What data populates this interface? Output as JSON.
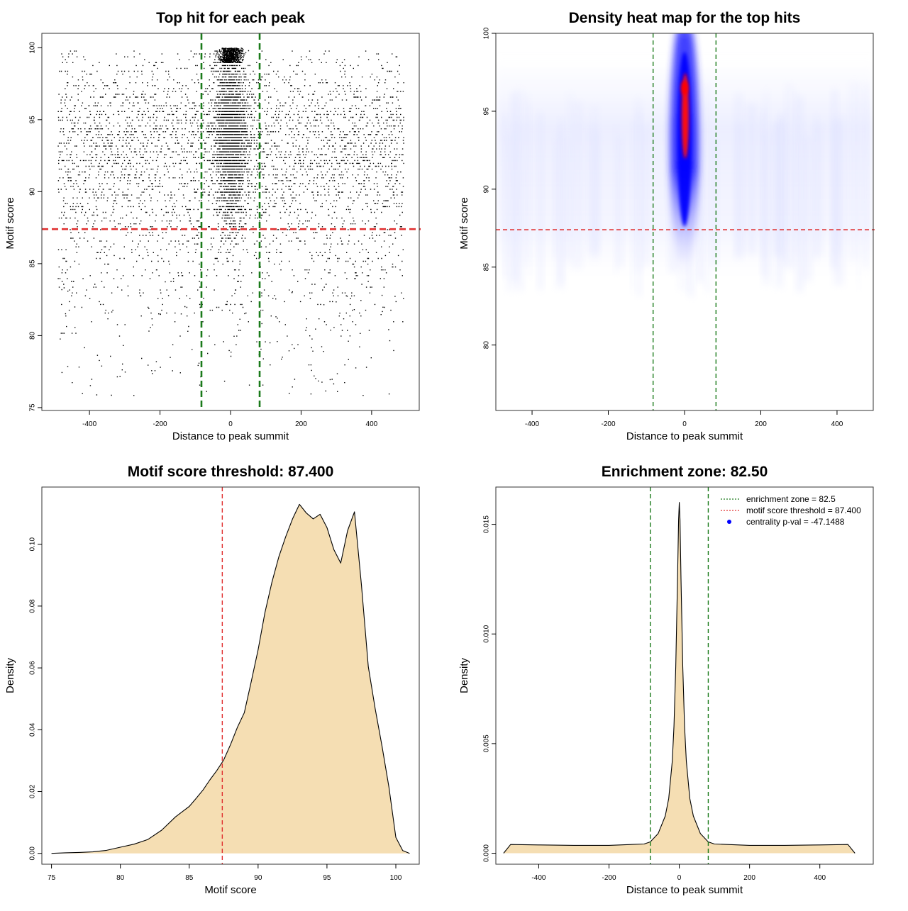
{
  "chart_data": [
    {
      "type": "scatter",
      "title": "Top hit for each peak",
      "xlabel": "Distance to peak summit",
      "ylabel": "Motif score",
      "xlim": [
        -500,
        500
      ],
      "ylim": [
        75,
        100
      ],
      "xticks": [
        -400,
        -200,
        0,
        200,
        400
      ],
      "yticks": [
        75,
        80,
        85,
        90,
        95,
        100
      ],
      "grid": false,
      "reference_lines": {
        "vertical": [
          -82.5,
          82.5
        ],
        "vertical_color": "#1a7a1a",
        "horizontal": [
          87.4
        ],
        "horizontal_color": "#e03030"
      },
      "point_color": "#000000",
      "point_distribution": {
        "x_range": [
          -490,
          490
        ],
        "y_range": [
          75.5,
          100
        ],
        "central_cluster_x_range": [
          -80,
          80
        ],
        "central_cluster_y_range": [
          84.5,
          100
        ]
      }
    },
    {
      "type": "heatmap",
      "title": "Density heat map for the top hits",
      "xlabel": "Distance to peak summit",
      "ylabel": "Motif score",
      "xlim": [
        -500,
        500
      ],
      "ylim": [
        75,
        100
      ],
      "xticks": [
        -400,
        -200,
        0,
        200,
        400
      ],
      "yticks": [
        80,
        85,
        90,
        95,
        100
      ],
      "grid": false,
      "reference_lines": {
        "vertical": [
          -82.5,
          82.5
        ],
        "vertical_color": "#1a7a1a",
        "horizontal": [
          87.4
        ],
        "horizontal_color": "#e03030"
      },
      "color_scale": [
        "#ffffff",
        "#0000ff",
        "#ff0000"
      ],
      "hotspot": {
        "x": 0,
        "y_range": [
          83,
          99.5
        ],
        "peak_y": 96.5
      }
    },
    {
      "type": "area",
      "title": "Motif score threshold: 87.400",
      "xlabel": "Motif score",
      "ylabel": "Density",
      "xlim": [
        75,
        101
      ],
      "ylim": [
        0,
        0.115
      ],
      "xticks": [
        75,
        80,
        85,
        90,
        95,
        100
      ],
      "yticks": [
        0.0,
        0.02,
        0.04,
        0.06,
        0.08,
        0.1
      ],
      "grid": false,
      "fill_color": "#f5deb3",
      "reference_lines": {
        "vertical": [
          87.4
        ],
        "vertical_color": "#e03030"
      },
      "x": [
        75,
        76,
        77,
        78,
        79,
        80,
        81,
        82,
        83,
        84,
        84.5,
        85,
        85.5,
        86,
        86.5,
        87,
        87.5,
        88,
        88.5,
        89,
        89.5,
        90,
        90.5,
        91,
        91.5,
        92,
        92.5,
        93,
        93.5,
        94,
        94.5,
        95,
        95.5,
        96,
        96.5,
        97,
        97.5,
        98,
        98.5,
        99,
        99.5,
        100,
        100.5,
        101
      ],
      "y": [
        0,
        0.0002,
        0.0003,
        0.0005,
        0.001,
        0.002,
        0.003,
        0.0045,
        0.0075,
        0.0118,
        0.0135,
        0.0152,
        0.0178,
        0.0205,
        0.0238,
        0.0268,
        0.0302,
        0.0352,
        0.0408,
        0.0455,
        0.0555,
        0.0658,
        0.0779,
        0.0876,
        0.0959,
        0.1024,
        0.1082,
        0.1129,
        0.1101,
        0.1082,
        0.1097,
        0.1054,
        0.0983,
        0.0939,
        0.1044,
        0.1105,
        0.0869,
        0.0604,
        0.0468,
        0.0346,
        0.0214,
        0.0052,
        0.0009,
        0.0
      ]
    },
    {
      "type": "area",
      "title": "Enrichment zone: 82.50",
      "xlabel": "Distance to peak summit",
      "ylabel": "Density",
      "xlim": [
        -500,
        500
      ],
      "ylim": [
        0,
        0.016
      ],
      "xticks": [
        -400,
        -200,
        0,
        200,
        400
      ],
      "yticks": [
        0.0,
        0.005,
        0.01,
        0.015
      ],
      "grid": false,
      "fill_color": "#f5deb3",
      "reference_lines": {
        "vertical": [
          -82.5,
          82.5
        ],
        "vertical_color": "#1a7a1a"
      },
      "x": [
        -500,
        -480,
        -400,
        -300,
        -200,
        -100,
        -82.5,
        -60,
        -40,
        -30,
        -20,
        -15,
        -10,
        -5,
        -2,
        0,
        2,
        5,
        10,
        15,
        20,
        30,
        40,
        60,
        82.5,
        100,
        200,
        300,
        400,
        480,
        500
      ],
      "y": [
        0,
        0.0004,
        0.00038,
        0.00036,
        0.00036,
        0.00042,
        0.00052,
        0.0009,
        0.0017,
        0.0025,
        0.0042,
        0.0058,
        0.0085,
        0.0125,
        0.0152,
        0.016,
        0.0152,
        0.0125,
        0.0085,
        0.0058,
        0.0042,
        0.0025,
        0.0017,
        0.0009,
        0.00052,
        0.00042,
        0.00036,
        0.00036,
        0.00038,
        0.0004,
        0
      ],
      "legend": {
        "position": "top-right",
        "entries": [
          {
            "label": "enrichment zone = 82.5",
            "color": "#1a7a1a",
            "style": "dotted-line"
          },
          {
            "label": "motif score threshold = 87.400",
            "color": "#e03030",
            "style": "dotted-line"
          },
          {
            "label": "centrality p-val = -47.1488",
            "color": "#0000ff",
            "style": "point"
          }
        ]
      }
    }
  ]
}
